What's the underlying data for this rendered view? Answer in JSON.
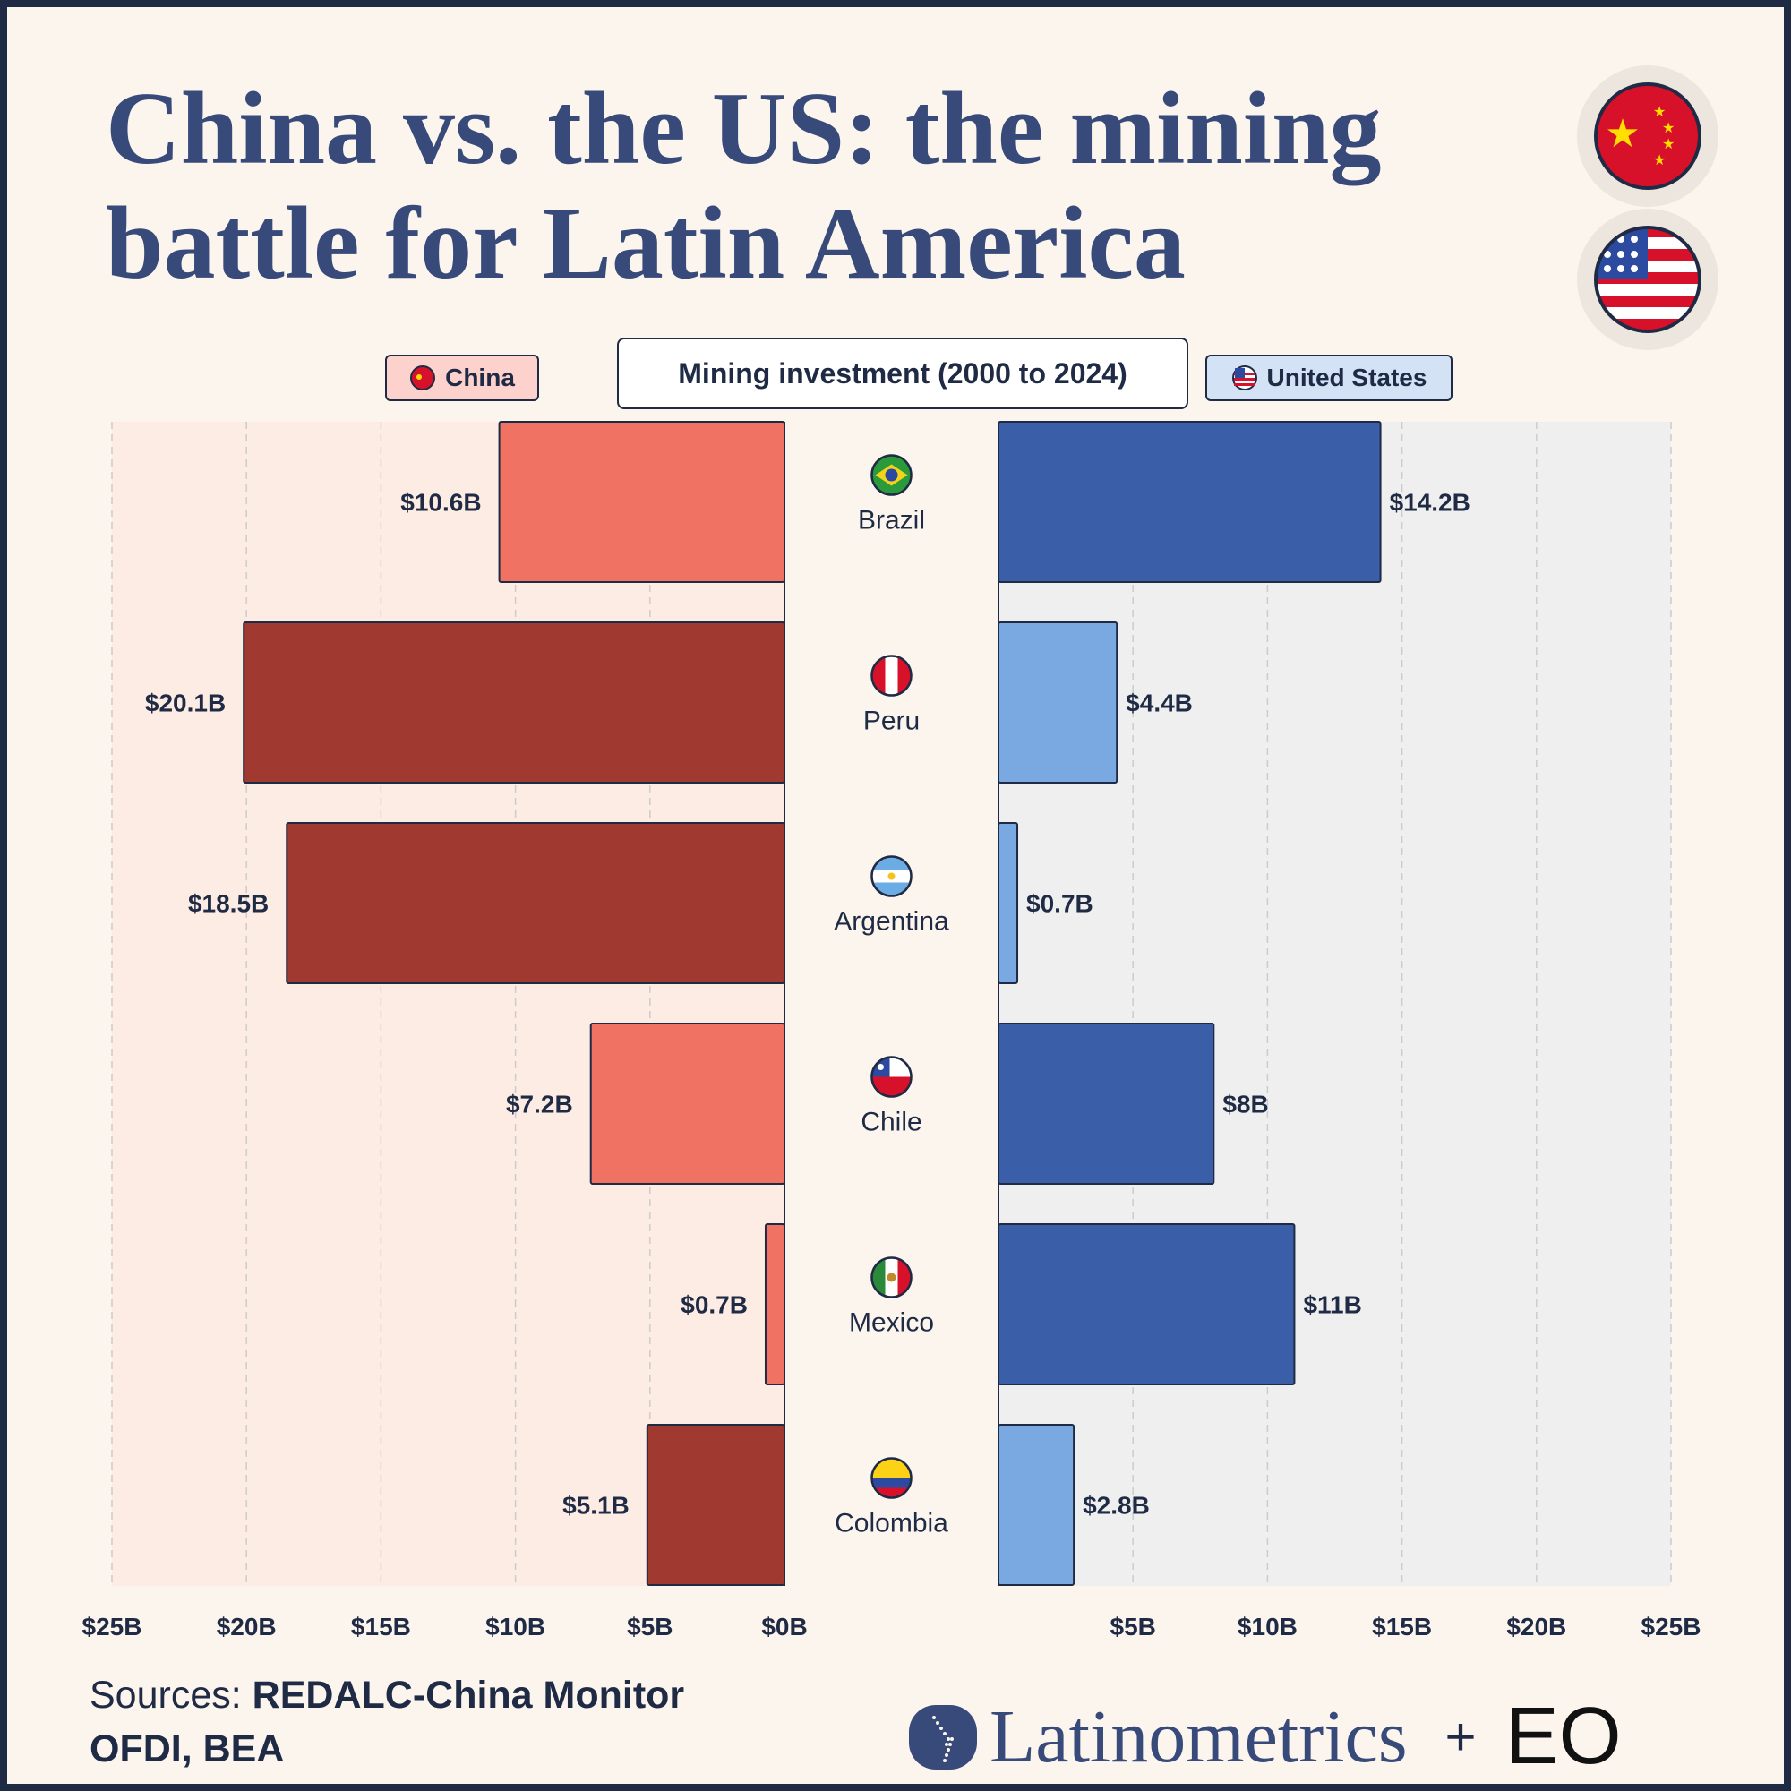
{
  "title_line1": "China vs. the US: the mining",
  "title_line2": "battle for Latin America",
  "legend": {
    "china": "China",
    "center": "Mining investment (2000 to 2024)",
    "us": "United States"
  },
  "sources": {
    "label": "Sources:",
    "text1": "REDALC-China Monitor",
    "text2": "OFDI, BEA"
  },
  "logo": {
    "brand": "Latinometrics",
    "plus": "+",
    "partner": "EO"
  },
  "colors": {
    "china_dark": "#a03a31",
    "china_light": "#ef7263",
    "us_dark": "#3a5fa8",
    "us_light": "#7aa8e0",
    "china_bg": "#fdece4",
    "us_bg": "#efefef",
    "title": "#374a7a"
  },
  "chart_data": {
    "type": "bar",
    "orientation": "horizontal-diverging",
    "categories": [
      "Brazil",
      "Peru",
      "Argentina",
      "Chile",
      "Mexico",
      "Colombia"
    ],
    "series": [
      {
        "name": "China",
        "values": [
          10.6,
          20.1,
          18.5,
          7.2,
          0.7,
          5.1
        ],
        "labels": [
          "$10.6B",
          "$20.1B",
          "$18.5B",
          "$7.2B",
          "$0.7B",
          "$5.1B"
        ],
        "highlight": [
          false,
          true,
          true,
          false,
          false,
          true
        ]
      },
      {
        "name": "United States",
        "values": [
          14.2,
          4.4,
          0.7,
          8,
          11,
          2.8
        ],
        "labels": [
          "$14.2B",
          "$4.4B",
          "$0.7B",
          "$8B",
          "$11B",
          "$2.8B"
        ],
        "highlight": [
          true,
          false,
          false,
          true,
          true,
          false
        ]
      }
    ],
    "xlim": [
      0,
      25
    ],
    "left_ticks": [
      "$25B",
      "$20B",
      "$15B",
      "$10B",
      "$5B",
      "$0B"
    ],
    "right_ticks": [
      "$5B",
      "$10B",
      "$15B",
      "$20B",
      "$25B"
    ],
    "grid": true
  }
}
